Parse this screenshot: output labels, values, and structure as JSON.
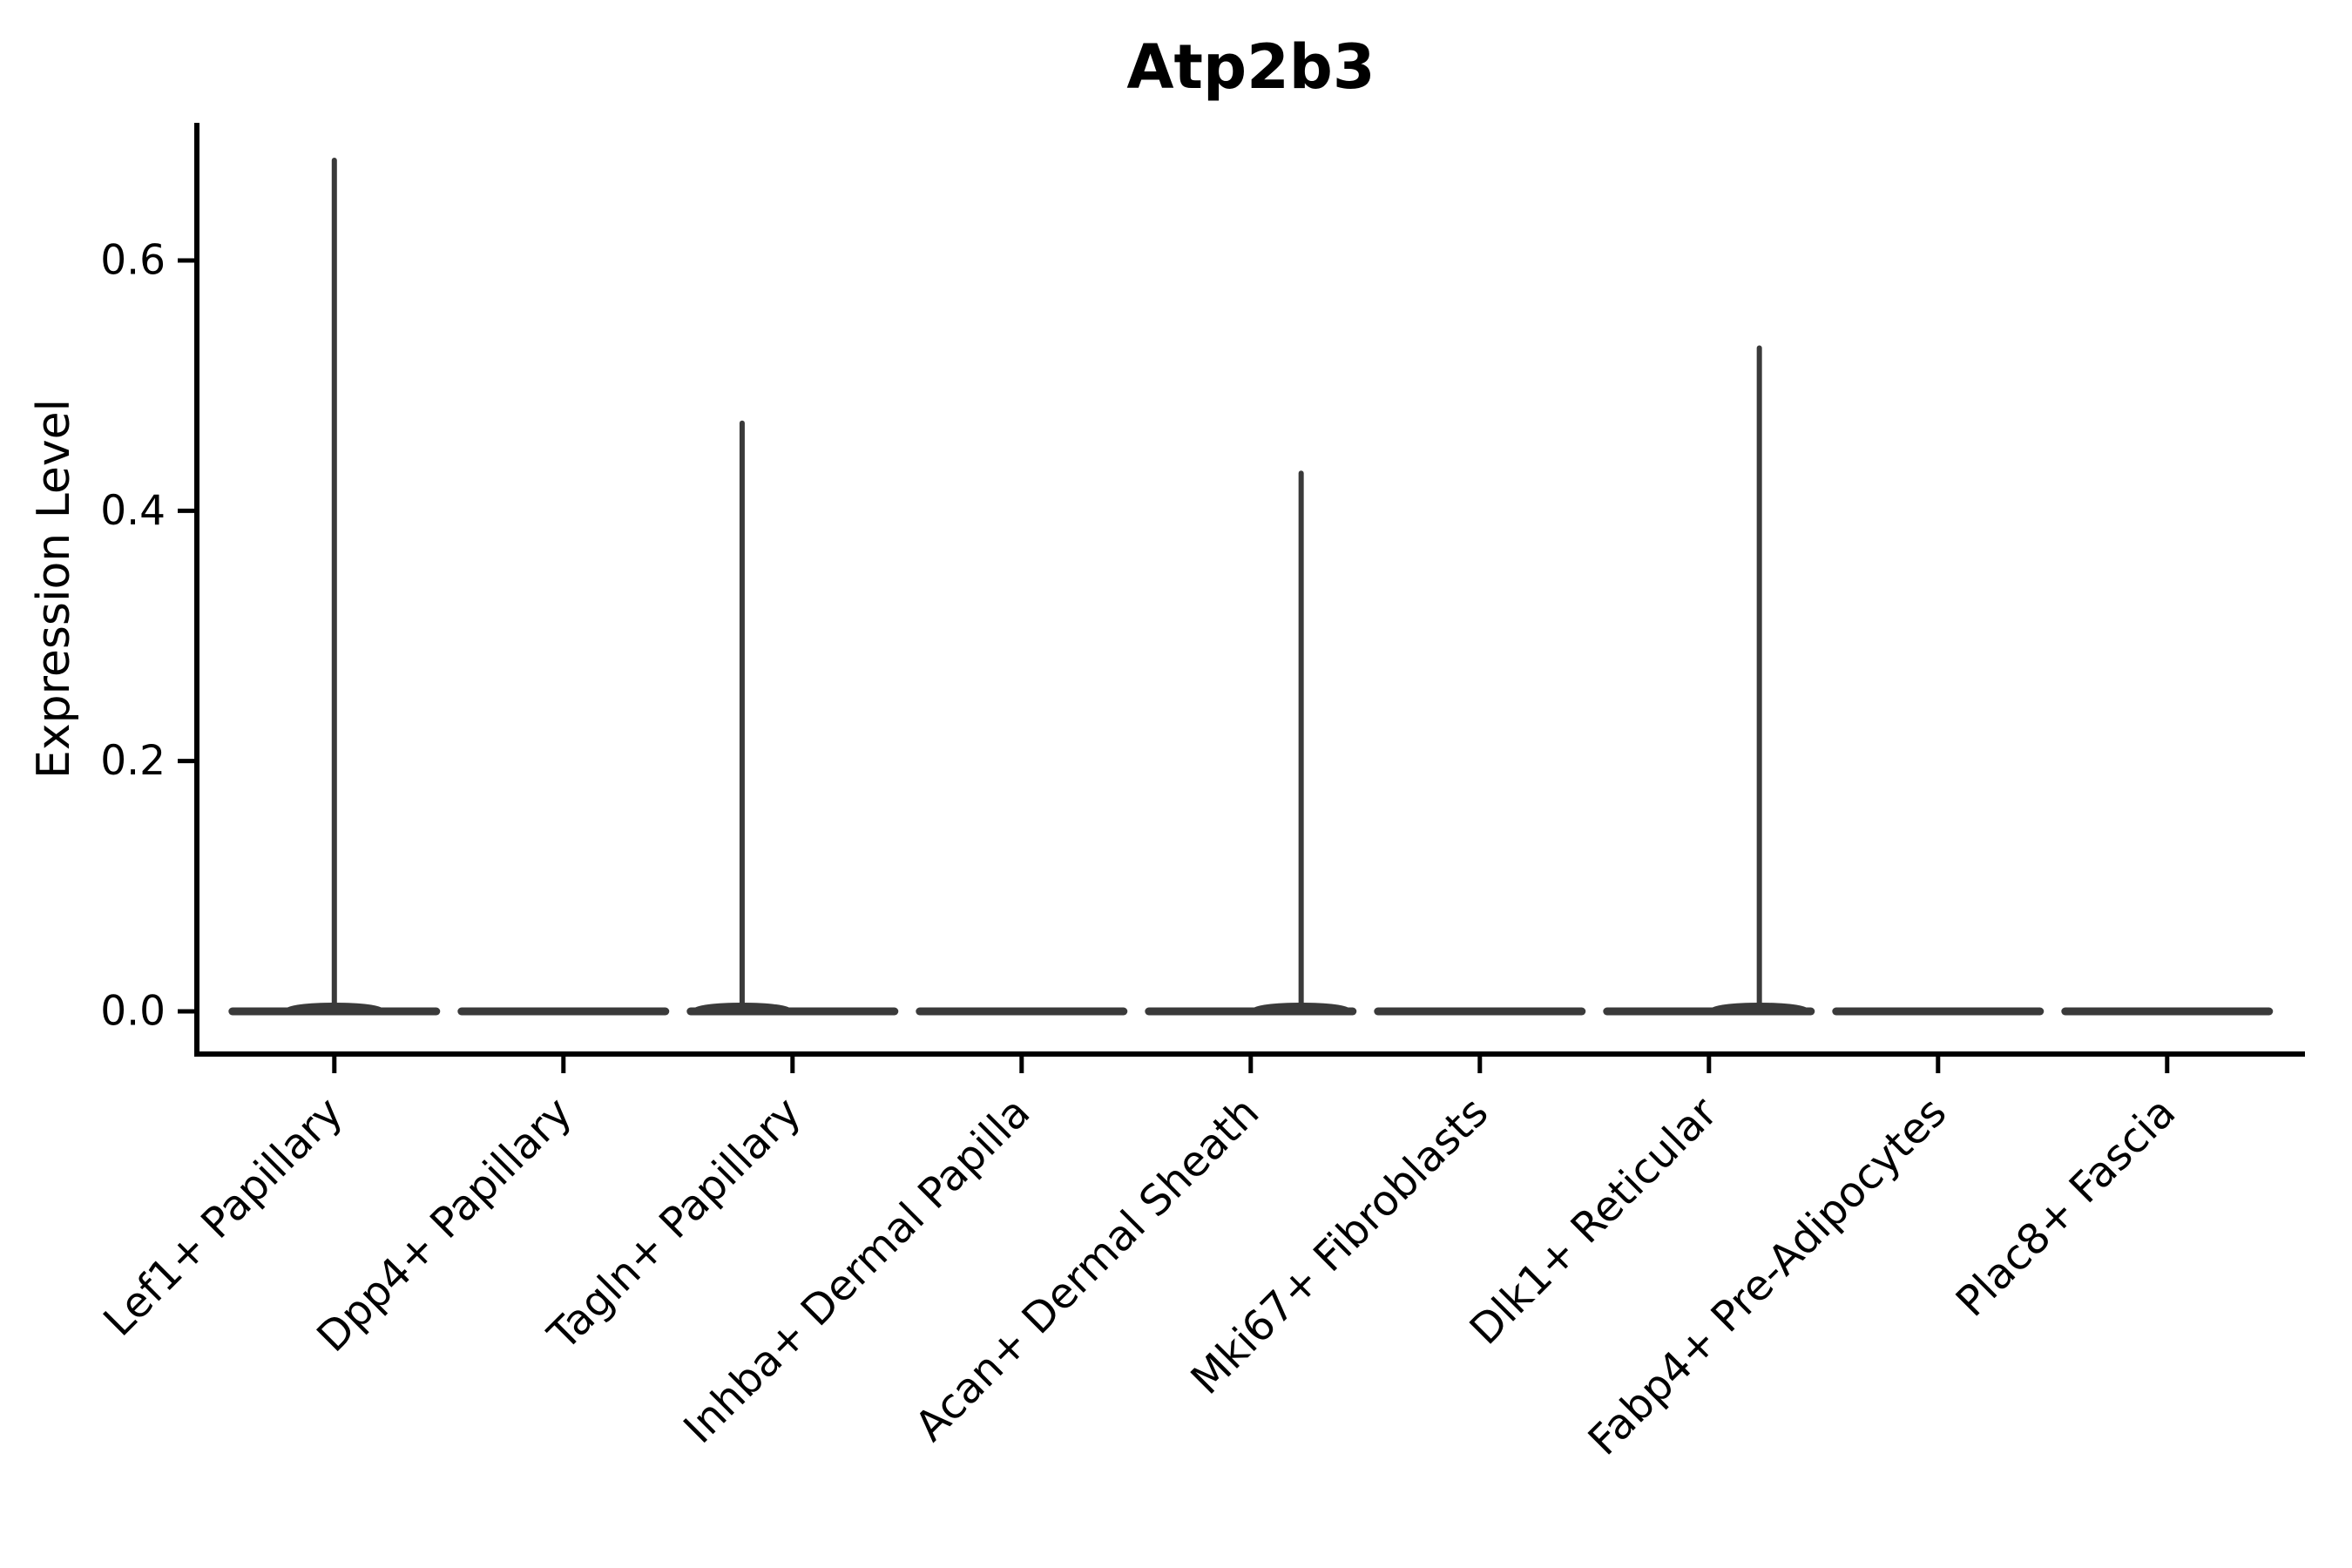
{
  "figure": {
    "title": "Atp2b3",
    "y_axis_label": "Expression Level"
  },
  "chart_data": {
    "type": "violin",
    "title": "Atp2b3",
    "xlabel": "",
    "ylabel": "Expression Level",
    "categories": [
      "Lef1+ Papillary",
      "Dpp4+ Papillary",
      "Tagln+ Papillary",
      "Inhba+ Dermal Papilla",
      "Acan+ Dermal Sheath",
      "Mki67+ Fibroblasts",
      "Dlk1+ Reticular",
      "Fabp4+ Pre-Adipocytes",
      "Plac8+ Fascia"
    ],
    "violins": [
      {
        "category": "Lef1+ Papillary",
        "max_expression": 0.68,
        "bulk_at": 0.0,
        "spike_offset": 0.0
      },
      {
        "category": "Dpp4+ Papillary",
        "max_expression": 0.0,
        "bulk_at": 0.0
      },
      {
        "category": "Tagln+ Papillary",
        "max_expression": 0.47,
        "bulk_at": 0.0,
        "spike_offset": -0.22
      },
      {
        "category": "Inhba+ Dermal Papilla",
        "max_expression": 0.0,
        "bulk_at": 0.0
      },
      {
        "category": "Acan+ Dermal Sheath",
        "max_expression": 0.43,
        "bulk_at": 0.0,
        "spike_offset": 0.22
      },
      {
        "category": "Mki67+ Fibroblasts",
        "max_expression": 0.0,
        "bulk_at": 0.0
      },
      {
        "category": "Dlk1+ Reticular",
        "max_expression": 0.53,
        "bulk_at": 0.0,
        "spike_offset": 0.22
      },
      {
        "category": "Fabp4+ Pre-Adipocytes",
        "max_expression": 0.0,
        "bulk_at": 0.0
      },
      {
        "category": "Plac8+ Fascia",
        "max_expression": 0.0,
        "bulk_at": 0.0
      }
    ],
    "y_ticks": [
      {
        "value": 0.0,
        "label": "0.0"
      },
      {
        "value": 0.2,
        "label": "0.2"
      },
      {
        "value": 0.4,
        "label": "0.4"
      },
      {
        "value": 0.6,
        "label": "0.6"
      }
    ],
    "ylim": [
      -0.03,
      0.71
    ],
    "grid": false,
    "legend": null,
    "colors": {
      "violin": "#3a3a3a",
      "axis": "#000000",
      "text": "#000000"
    }
  }
}
